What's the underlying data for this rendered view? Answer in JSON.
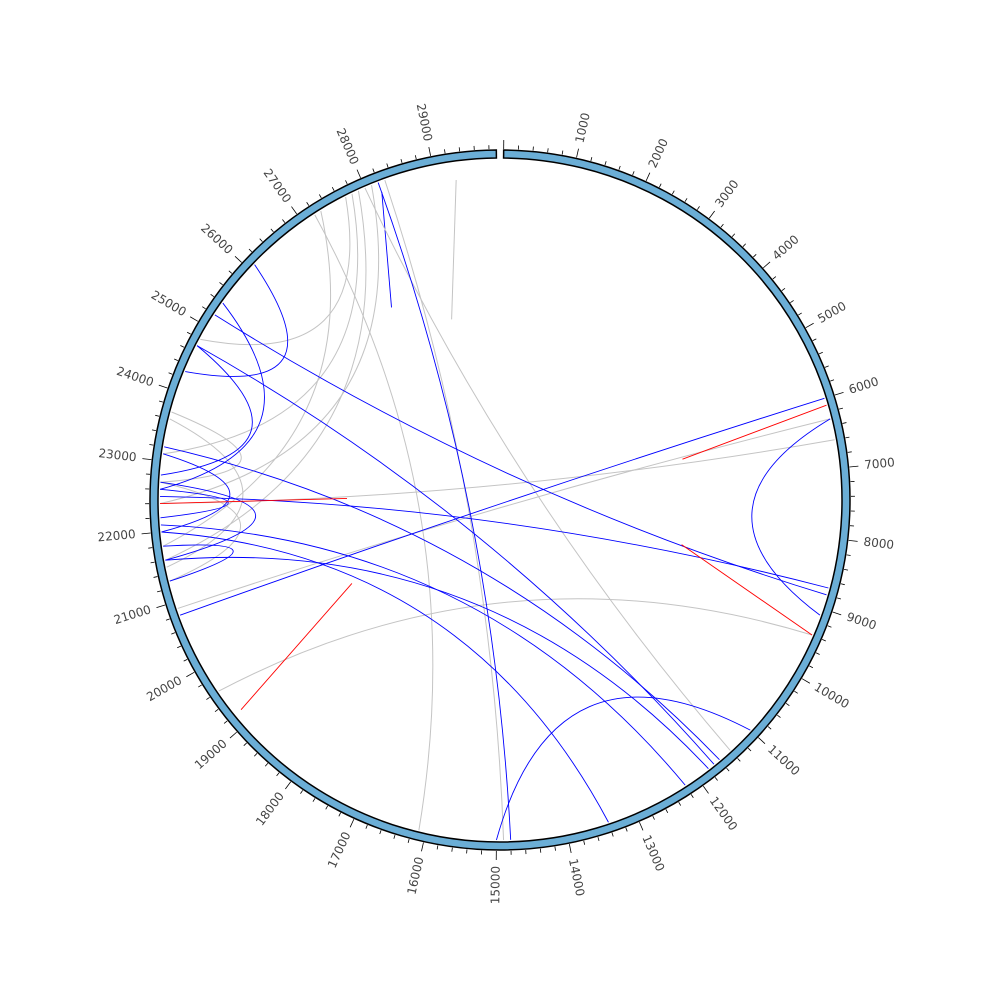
{
  "diagram": {
    "type": "circos-link-plot",
    "genome_length": 29900,
    "ideogram_color": "#6baed6",
    "ideogram_outline": "#000000",
    "tick_labels": [
      "1000",
      "2000",
      "3000",
      "4000",
      "5000",
      "6000",
      "7000",
      "8000",
      "9000",
      "10000",
      "11000",
      "12000",
      "13000",
      "14000",
      "15000",
      "16000",
      "17000",
      "18000",
      "19000",
      "20000",
      "21000",
      "22000",
      "23000",
      "24000",
      "25000",
      "26000",
      "27000",
      "28000",
      "29000"
    ],
    "tick_positions": [
      1000,
      2000,
      3000,
      4000,
      5000,
      6000,
      7000,
      8000,
      9000,
      10000,
      11000,
      12000,
      13000,
      14000,
      15000,
      16000,
      17000,
      18000,
      19000,
      20000,
      21000,
      22000,
      23000,
      24000,
      25000,
      26000,
      27000,
      28000,
      29000
    ],
    "colors": {
      "blue": "#0000ff",
      "gray": "#c4c4c4",
      "red": "#ff0000"
    },
    "links": [
      {
        "kind": "segment",
        "color": "gray",
        "from": 29300,
        "to": 28700,
        "r1": 0.95,
        "r2": 0.55
      },
      {
        "kind": "segment",
        "color": "blue",
        "from": 28200,
        "to": 27500,
        "r1": 0.97,
        "r2": 0.65
      },
      {
        "kind": "arc",
        "color": "gray",
        "from": 27700,
        "to": 24800,
        "depth": 0.55
      },
      {
        "kind": "arc",
        "color": "gray",
        "from": 27800,
        "to": 23100,
        "depth": 0.45
      },
      {
        "kind": "arc",
        "color": "gray",
        "from": 27900,
        "to": 21600,
        "depth": 0.4
      },
      {
        "kind": "arc",
        "color": "gray",
        "from": 28100,
        "to": 22400,
        "depth": 0.35
      },
      {
        "kind": "arc",
        "color": "gray",
        "from": 28000,
        "to": 11400,
        "depth": 0.2
      },
      {
        "kind": "arc",
        "color": "gray",
        "from": 27300,
        "to": 21800,
        "depth": 0.5
      },
      {
        "kind": "arc",
        "color": "gray",
        "from": 27200,
        "to": 16100,
        "depth": 0.2
      },
      {
        "kind": "arc",
        "color": "gray",
        "from": 28300,
        "to": 14900,
        "depth": 0.15
      },
      {
        "kind": "arc",
        "color": "gray",
        "from": 22700,
        "to": 23700,
        "depth": 0.55
      },
      {
        "kind": "arc",
        "color": "gray",
        "from": 23600,
        "to": 21500,
        "depth": 0.55
      },
      {
        "kind": "arc",
        "color": "gray",
        "from": 19600,
        "to": 9400,
        "depth": 0.25
      },
      {
        "kind": "arc",
        "color": "gray",
        "from": 22400,
        "to": 6600,
        "depth": 0.05
      },
      {
        "kind": "arc",
        "color": "gray",
        "from": 20900,
        "to": 6300,
        "depth": 0.05
      },
      {
        "kind": "arc",
        "color": "gray",
        "from": 21300,
        "to": 22700,
        "depth": 0.55
      },
      {
        "kind": "arc",
        "color": "blue",
        "from": 26100,
        "to": 24300,
        "depth": 0.55
      },
      {
        "kind": "arc",
        "color": "blue",
        "from": 25400,
        "to": 22600,
        "depth": 0.55
      },
      {
        "kind": "arc",
        "color": "blue",
        "from": 25200,
        "to": 8800,
        "depth": 0.1
      },
      {
        "kind": "arc",
        "color": "blue",
        "from": 24700,
        "to": 22800,
        "depth": 0.55
      },
      {
        "kind": "arc",
        "color": "blue",
        "from": 24700,
        "to": 11700,
        "depth": 0.2
      },
      {
        "kind": "arc",
        "color": "blue",
        "from": 23100,
        "to": 22000,
        "depth": 0.6
      },
      {
        "kind": "arc",
        "color": "blue",
        "from": 23200,
        "to": 11600,
        "depth": 0.2
      },
      {
        "kind": "arc",
        "color": "blue",
        "from": 22600,
        "to": 22200,
        "depth": 0.6
      },
      {
        "kind": "arc",
        "color": "blue",
        "from": 22500,
        "to": 8700,
        "depth": 0.05
      },
      {
        "kind": "arc",
        "color": "blue",
        "from": 22100,
        "to": 12200,
        "depth": 0.25
      },
      {
        "kind": "arc",
        "color": "blue",
        "from": 22000,
        "to": 13400,
        "depth": 0.3
      },
      {
        "kind": "arc",
        "color": "blue",
        "from": 21600,
        "to": 11800,
        "depth": 0.2
      },
      {
        "kind": "arc",
        "color": "blue",
        "from": 21800,
        "to": 21300,
        "depth": 0.6
      },
      {
        "kind": "arc",
        "color": "blue",
        "from": 21600,
        "to": 22700,
        "depth": 0.45
      },
      {
        "kind": "arc",
        "color": "blue",
        "from": 28200,
        "to": 14800,
        "depth": 0.12
      },
      {
        "kind": "arc",
        "color": "blue",
        "from": 15000,
        "to": 11000,
        "depth": 0.45
      },
      {
        "kind": "arc",
        "color": "blue",
        "from": 6300,
        "to": 9100,
        "depth": 0.55
      },
      {
        "kind": "arc",
        "color": "blue",
        "from": 20800,
        "to": 6000,
        "depth": 0.05
      },
      {
        "kind": "segment",
        "color": "red",
        "from": 6100,
        "to": 6400,
        "r1": 1.0,
        "r2": 0.55
      },
      {
        "kind": "segment",
        "color": "red",
        "from": 9400,
        "to": 8600,
        "r1": 1.0,
        "r2": 0.55
      },
      {
        "kind": "segment",
        "color": "red",
        "from": 22400,
        "to": 22500,
        "r1": 1.0,
        "r2": 0.45
      },
      {
        "kind": "segment",
        "color": "red",
        "from": 19200,
        "to": 20000,
        "r1": 0.98,
        "r2": 0.5
      }
    ]
  }
}
